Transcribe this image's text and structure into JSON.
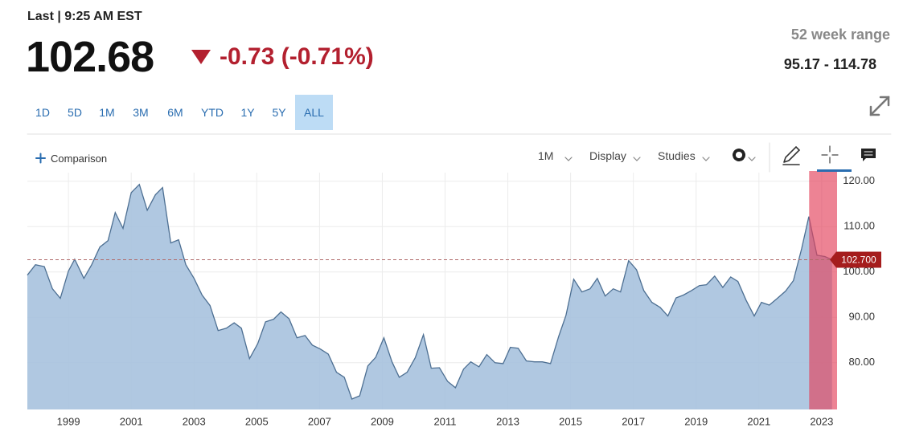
{
  "header": {
    "last": "Last | 9:25 AM EST",
    "price": "102.68",
    "change": "-0.73 (-0.71%)",
    "range_title": "52 week range",
    "range": "95.17 - 114.78"
  },
  "tabs": [
    "1D",
    "5D",
    "1M",
    "3M",
    "6M",
    "YTD",
    "1Y",
    "5Y",
    "ALL"
  ],
  "active_tab": 8,
  "toolbar": {
    "comparison": "Comparison",
    "interval": "1M",
    "display": "Display",
    "studies": "Studies"
  },
  "chart_data": {
    "type": "area",
    "x": [
      1997.69,
      1997.95,
      1998.23,
      1998.49,
      1998.74,
      1999.0,
      1999.2,
      1999.49,
      1999.74,
      2000.0,
      2000.26,
      2000.49,
      2000.74,
      2001.0,
      2001.26,
      2001.51,
      2001.77,
      2002.0,
      2002.26,
      2002.51,
      2002.74,
      2003.0,
      2003.26,
      2003.51,
      2003.77,
      2004.03,
      2004.28,
      2004.51,
      2004.77,
      2005.03,
      2005.28,
      2005.54,
      2005.77,
      2006.03,
      2006.28,
      2006.54,
      2006.77,
      2007.03,
      2007.28,
      2007.54,
      2007.79,
      2008.03,
      2008.28,
      2008.54,
      2008.79,
      2009.05,
      2009.31,
      2009.54,
      2009.79,
      2010.05,
      2010.31,
      2010.56,
      2010.82,
      2011.08,
      2011.33,
      2011.59,
      2011.82,
      2012.08,
      2012.33,
      2012.59,
      2012.85,
      2013.08,
      2013.33,
      2013.59,
      2013.85,
      2014.1,
      2014.36,
      2014.62,
      2014.85,
      2015.1,
      2015.36,
      2015.62,
      2015.85,
      2016.1,
      2016.36,
      2016.59,
      2016.85,
      2017.1,
      2017.33,
      2017.59,
      2017.85,
      2018.1,
      2018.36,
      2018.59,
      2018.85,
      2019.1,
      2019.33,
      2019.59,
      2019.85,
      2020.1,
      2020.33,
      2020.59,
      2020.85,
      2021.08,
      2021.33,
      2021.59,
      2021.85,
      2022.1,
      2022.36,
      2022.59,
      2022.85,
      2023.1,
      2023.33
    ],
    "values": [
      99.3,
      101.6,
      101.2,
      96.3,
      94.2,
      100.2,
      102.8,
      98.6,
      101.6,
      105.5,
      106.9,
      113.1,
      109.6,
      117.5,
      119.3,
      113.6,
      117.0,
      118.6,
      106.4,
      107.1,
      101.6,
      98.6,
      94.9,
      92.6,
      87.1,
      87.6,
      88.8,
      87.6,
      80.9,
      84.2,
      89.0,
      89.6,
      91.2,
      89.7,
      85.5,
      86.0,
      83.9,
      83.0,
      81.9,
      77.9,
      76.8,
      72.0,
      72.7,
      79.3,
      81.2,
      85.5,
      80.2,
      76.8,
      77.9,
      81.1,
      86.2,
      78.8,
      78.9,
      75.9,
      74.5,
      78.6,
      80.2,
      79.1,
      81.8,
      80.0,
      79.8,
      83.4,
      83.2,
      80.4,
      80.2,
      80.2,
      79.8,
      85.8,
      90.4,
      98.4,
      95.6,
      96.3,
      98.6,
      94.7,
      96.3,
      95.6,
      102.5,
      100.5,
      95.9,
      93.3,
      92.2,
      90.3,
      94.3,
      94.9,
      95.9,
      97.0,
      97.2,
      99.1,
      96.6,
      98.9,
      97.9,
      93.8,
      90.3,
      93.3,
      92.7,
      94.2,
      95.8,
      98.1,
      105.1,
      112.2,
      103.7,
      103.4,
      102.7
    ],
    "color": "#4d6f92",
    "fill_color": "#a7c2de",
    "xlim": [
      1997.69,
      2023.49
    ],
    "ylim": [
      69.7,
      121.9
    ],
    "xticks": [
      1999,
      2001,
      2003,
      2005,
      2007,
      2009,
      2011,
      2013,
      2015,
      2017,
      2019,
      2021,
      2023
    ],
    "yticks": [
      {
        "value": 80,
        "label": "80.00"
      },
      {
        "value": 90,
        "label": "90.00"
      },
      {
        "value": 100,
        "label": "100.00"
      },
      {
        "value": 110,
        "label": "110.00"
      },
      {
        "value": 120,
        "label": "120.00"
      }
    ],
    "grid": true,
    "reference": {
      "value": 102.7,
      "label": "102.700"
    },
    "highlight_x": [
      2022.6,
      2023.49
    ],
    "highlight_color": "#e4415a"
  }
}
